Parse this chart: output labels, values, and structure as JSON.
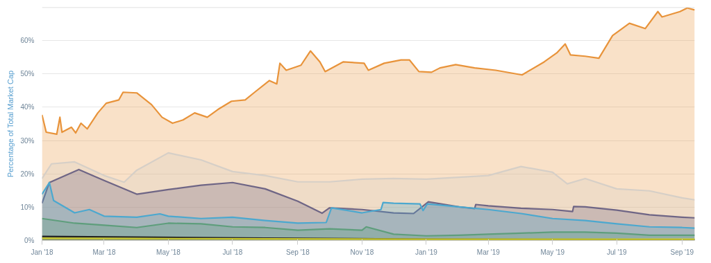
{
  "chart_data": {
    "type": "area",
    "ylabel": "Percentage of Total Market Cap",
    "grid": "y",
    "xlim": [
      "2018-01-01",
      "2019-09-13"
    ],
    "xticks": [
      {
        "value": "2018-01-01",
        "label": "Jan '18"
      },
      {
        "value": "2018-03-01",
        "label": "Mar '18"
      },
      {
        "value": "2018-05-01",
        "label": "May '18"
      },
      {
        "value": "2018-07-01",
        "label": "Jul '18"
      },
      {
        "value": "2018-09-01",
        "label": "Sep '18"
      },
      {
        "value": "2018-11-01",
        "label": "Nov '18"
      },
      {
        "value": "2019-01-01",
        "label": "Jan '19"
      },
      {
        "value": "2019-03-01",
        "label": "Mar '19"
      },
      {
        "value": "2019-05-01",
        "label": "May '19"
      },
      {
        "value": "2019-07-01",
        "label": "Jul '19"
      },
      {
        "value": "2019-09-01",
        "label": "Sep '19"
      }
    ],
    "ylim": [
      0,
      70
    ],
    "yticks": [
      {
        "value": 0,
        "label": "0%"
      },
      {
        "value": 10,
        "label": "10%"
      },
      {
        "value": 20,
        "label": "20%"
      },
      {
        "value": 30,
        "label": "30%"
      },
      {
        "value": 40,
        "label": "40%"
      },
      {
        "value": 50,
        "label": "50%"
      },
      {
        "value": 60,
        "label": "60%"
      },
      {
        "value": 70,
        "label": null
      }
    ],
    "series": [
      {
        "color": "#e8933a",
        "x": [
          "2018-01-01",
          "2018-01-05",
          "2018-01-15",
          "2018-01-18",
          "2018-01-20",
          "2018-01-29",
          "2018-02-02",
          "2018-02-07",
          "2018-02-13",
          "2018-02-23",
          "2018-03-03",
          "2018-03-15",
          "2018-03-19",
          "2018-04-01",
          "2018-04-15",
          "2018-04-25",
          "2018-05-05",
          "2018-05-15",
          "2018-05-26",
          "2018-06-07",
          "2018-06-17",
          "2018-06-30",
          "2018-07-13",
          "2018-07-22",
          "2018-08-05",
          "2018-08-12",
          "2018-08-15",
          "2018-08-21",
          "2018-09-04",
          "2018-09-13",
          "2018-09-22",
          "2018-09-27",
          "2018-10-14",
          "2018-11-03",
          "2018-11-07",
          "2018-11-22",
          "2018-12-08",
          "2018-12-16",
          "2018-12-25",
          "2019-01-06",
          "2019-01-14",
          "2019-01-29",
          "2019-02-16",
          "2019-03-08",
          "2019-04-02",
          "2019-04-23",
          "2019-05-05",
          "2019-05-13",
          "2019-05-18",
          "2019-06-01",
          "2019-06-14",
          "2019-06-27",
          "2019-07-13",
          "2019-07-28",
          "2019-08-09",
          "2019-08-13",
          "2019-08-30",
          "2019-09-06",
          "2019-09-13"
        ],
        "values": [
          37.7,
          32.5,
          31.9,
          37,
          32.5,
          34,
          32.3,
          35.2,
          33.5,
          38.3,
          41.2,
          42.2,
          44.5,
          44.3,
          40.8,
          37,
          35.2,
          36.2,
          38.3,
          37,
          39.3,
          41.8,
          42.2,
          44.5,
          48,
          47,
          53.2,
          51.1,
          52.6,
          56.9,
          53.6,
          50.7,
          53.6,
          53.2,
          51.1,
          53.2,
          54.2,
          54.2,
          50.7,
          50.5,
          51.8,
          52.8,
          51.8,
          51.1,
          49.7,
          53.6,
          56.3,
          59,
          55.7,
          55.3,
          54.7,
          61.5,
          65.2,
          63.6,
          68.7,
          67.1,
          68.7,
          69.8,
          69.2
        ]
      },
      {
        "color": "#d6cfc7",
        "x": [
          "2018-01-01",
          "2018-01-10",
          "2018-02-01",
          "2018-03-01",
          "2018-03-20",
          "2018-04-01",
          "2018-05-01",
          "2018-06-01",
          "2018-07-01",
          "2018-08-01",
          "2018-09-01",
          "2018-10-01",
          "2018-11-01",
          "2018-12-01",
          "2019-01-01",
          "2019-02-01",
          "2019-03-01",
          "2019-04-01",
          "2019-05-01",
          "2019-05-15",
          "2019-06-01",
          "2019-07-01",
          "2019-08-01",
          "2019-09-01",
          "2019-09-13"
        ],
        "values": [
          18.6,
          23,
          23.6,
          19.5,
          17.5,
          21.1,
          26.3,
          24.2,
          20.7,
          19.5,
          17.6,
          17.6,
          18.4,
          18.6,
          18.4,
          19,
          19.5,
          22.2,
          20.5,
          17,
          18.6,
          15.5,
          14.9,
          12.8,
          12.2
        ]
      },
      {
        "color": "#6e6585",
        "x": [
          "2018-01-01",
          "2018-01-08",
          "2018-02-05",
          "2018-03-01",
          "2018-04-01",
          "2018-05-01",
          "2018-06-01",
          "2018-07-01",
          "2018-08-01",
          "2018-09-01",
          "2018-09-24",
          "2018-10-01",
          "2018-11-01",
          "2018-12-01",
          "2018-12-20",
          "2019-01-03",
          "2019-02-01",
          "2019-02-16",
          "2019-02-17",
          "2019-03-01",
          "2019-04-01",
          "2019-05-01",
          "2019-05-20",
          "2019-05-21",
          "2019-06-01",
          "2019-07-01",
          "2019-08-01",
          "2019-09-01",
          "2019-09-13"
        ],
        "values": [
          11.2,
          17.4,
          21.3,
          18,
          13.9,
          15.3,
          16.6,
          17.4,
          15.5,
          11.8,
          8.2,
          9.8,
          9.3,
          8.3,
          8.1,
          11.6,
          10.1,
          9.6,
          10.8,
          10.4,
          9.7,
          9.3,
          8.7,
          10.2,
          10.1,
          9.1,
          7.7,
          7,
          6.8
        ]
      },
      {
        "color": "#4ba8cf",
        "x": [
          "2018-01-01",
          "2018-01-08",
          "2018-01-12",
          "2018-02-01",
          "2018-02-15",
          "2018-03-01",
          "2018-04-01",
          "2018-04-23",
          "2018-05-01",
          "2018-06-01",
          "2018-07-01",
          "2018-08-01",
          "2018-09-01",
          "2018-09-28",
          "2018-10-03",
          "2018-11-01",
          "2018-11-19",
          "2018-11-21",
          "2018-12-01",
          "2018-12-26",
          "2018-12-29",
          "2019-01-02",
          "2019-02-01",
          "2019-03-01",
          "2019-04-01",
          "2019-05-01",
          "2019-06-01",
          "2019-07-01",
          "2019-08-01",
          "2019-09-01",
          "2019-09-13"
        ],
        "values": [
          13.9,
          17.4,
          12,
          8.3,
          9.3,
          7.3,
          7,
          8,
          7.3,
          6.6,
          7,
          6,
          5.2,
          5.4,
          9.8,
          8.3,
          9.3,
          11.4,
          11.2,
          11,
          9,
          11,
          10.1,
          9.3,
          8.1,
          6.6,
          6,
          5,
          4.1,
          3.9,
          3.7
        ]
      },
      {
        "color": "#5e9e7c",
        "x": [
          "2018-01-01",
          "2018-02-01",
          "2018-03-01",
          "2018-04-01",
          "2018-05-01",
          "2018-06-01",
          "2018-07-01",
          "2018-08-01",
          "2018-09-01",
          "2018-10-01",
          "2018-11-01",
          "2018-11-05",
          "2018-12-01",
          "2019-01-01",
          "2019-02-01",
          "2019-03-01",
          "2019-04-01",
          "2019-05-01",
          "2019-06-01",
          "2019-07-01",
          "2019-08-01",
          "2019-09-01",
          "2019-09-13"
        ],
        "values": [
          6.6,
          5.2,
          4.6,
          3.9,
          5.2,
          5,
          4.1,
          3.9,
          3.1,
          3.5,
          3.1,
          4.1,
          1.9,
          1.4,
          1.6,
          1.9,
          2.2,
          2.5,
          2.5,
          2.2,
          1.6,
          1.6,
          1.6
        ]
      },
      {
        "color": "#222222",
        "x": [
          "2018-01-01",
          "2018-04-01",
          "2018-08-01",
          "2019-01-01",
          "2019-09-13"
        ],
        "values": [
          1.2,
          1,
          0.7,
          0.4,
          0.3
        ]
      },
      {
        "color": "#c9c92e",
        "x": [
          "2018-01-01",
          "2018-04-01",
          "2018-08-01",
          "2019-01-01",
          "2019-09-13"
        ],
        "values": [
          0.7,
          0.6,
          0.5,
          0.4,
          0.4
        ]
      }
    ]
  }
}
